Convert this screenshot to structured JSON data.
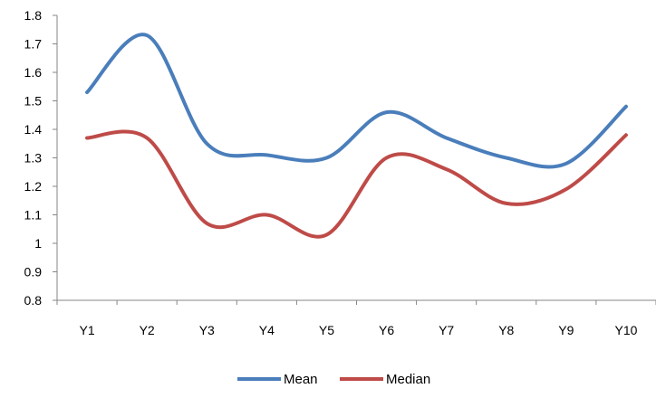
{
  "chart_data": {
    "type": "line",
    "title": "",
    "xlabel": "",
    "ylabel": "",
    "categories": [
      "Y1",
      "Y2",
      "Y3",
      "Y4",
      "Y5",
      "Y6",
      "Y7",
      "Y8",
      "Y9",
      "Y10"
    ],
    "ylim": [
      0.8,
      1.8
    ],
    "yticks": [
      "0.8",
      "0.9",
      "1",
      "1.1",
      "1.2",
      "1.3",
      "1.4",
      "1.5",
      "1.6",
      "1.7",
      "1.8"
    ],
    "grid": false,
    "legend_position": "bottom",
    "smooth": true,
    "series": [
      {
        "name": "Mean",
        "color": "#4a7ebb",
        "values": [
          1.53,
          1.73,
          1.35,
          1.31,
          1.3,
          1.46,
          1.37,
          1.3,
          1.28,
          1.48
        ]
      },
      {
        "name": "Median",
        "color": "#be4b48",
        "values": [
          1.37,
          1.37,
          1.07,
          1.1,
          1.03,
          1.3,
          1.26,
          1.14,
          1.19,
          1.38
        ]
      }
    ]
  }
}
